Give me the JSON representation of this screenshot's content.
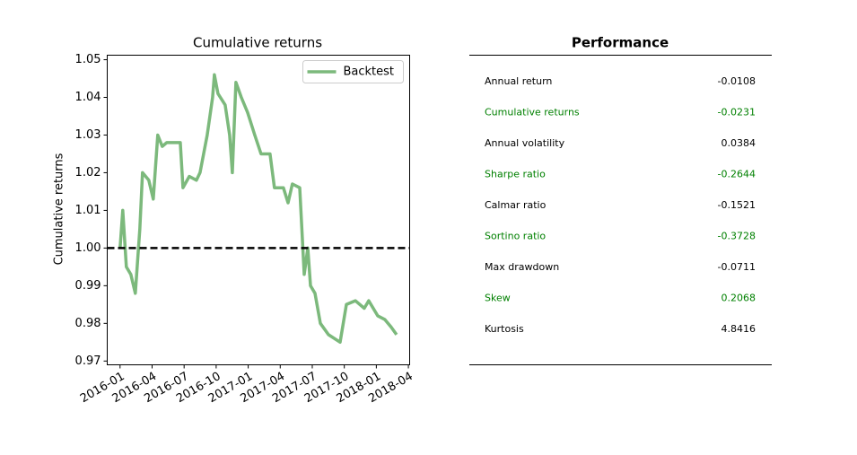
{
  "chart_data": {
    "type": "line",
    "title": "Cumulative returns",
    "ylabel": "Cumulative returns",
    "x": [
      2016.0,
      2016.021,
      2016.049,
      2016.084,
      2016.119,
      2016.154,
      2016.175,
      2016.224,
      2016.259,
      2016.294,
      2016.329,
      2016.364,
      2016.434,
      2016.47,
      2016.491,
      2016.54,
      2016.596,
      2016.624,
      2016.68,
      2016.722,
      2016.736,
      2016.764,
      2016.82,
      2016.855,
      2016.876,
      2016.904,
      2016.946,
      2016.995,
      2017.051,
      2017.1,
      2017.17,
      2017.205,
      2017.275,
      2017.311,
      2017.345,
      2017.402,
      2017.437,
      2017.465,
      2017.486,
      2017.521,
      2017.563,
      2017.626,
      2017.717,
      2017.766,
      2017.836,
      2017.906,
      2017.941,
      2018.011,
      2018.067,
      2018.116,
      2018.158
    ],
    "series": [
      {
        "name": "Backtest",
        "color": "#7cb97c",
        "values": [
          1.0,
          1.01,
          0.995,
          0.993,
          0.988,
          1.005,
          1.02,
          1.018,
          1.013,
          1.03,
          1.027,
          1.028,
          1.028,
          1.028,
          1.016,
          1.019,
          1.018,
          1.02,
          1.03,
          1.04,
          1.046,
          1.041,
          1.038,
          1.03,
          1.02,
          1.044,
          1.04,
          1.036,
          1.03,
          1.025,
          1.025,
          1.016,
          1.016,
          1.012,
          1.017,
          1.016,
          0.993,
          1.0,
          0.99,
          0.988,
          0.98,
          0.977,
          0.975,
          0.985,
          0.986,
          0.984,
          0.986,
          0.982,
          0.981,
          0.979,
          0.977
        ]
      }
    ],
    "hline": 1.0,
    "xlim": [
      2015.9,
      2018.26
    ],
    "xticks": [
      {
        "value": 2016.0,
        "label": "2016-01"
      },
      {
        "value": 2016.25,
        "label": "2016-04"
      },
      {
        "value": 2016.5,
        "label": "2016-07"
      },
      {
        "value": 2016.75,
        "label": "2016-10"
      },
      {
        "value": 2017.0,
        "label": "2017-01"
      },
      {
        "value": 2017.25,
        "label": "2017-04"
      },
      {
        "value": 2017.5,
        "label": "2017-07"
      },
      {
        "value": 2017.75,
        "label": "2017-10"
      },
      {
        "value": 2018.0,
        "label": "2018-01"
      },
      {
        "value": 2018.25,
        "label": "2018-04"
      }
    ],
    "ylim": [
      0.969,
      1.0512
    ],
    "yticks": [
      0.97,
      0.98,
      0.99,
      {
        "value": 1,
        "label": "1.00"
      },
      1.01,
      1.02,
      1.03,
      1.04,
      1.05
    ],
    "legend": "upper right"
  },
  "performance": {
    "title": "Performance",
    "row_colors": [
      "#000000",
      "#008000"
    ],
    "rows": [
      [
        "Annual return",
        -0.0108
      ],
      [
        "Cumulative returns",
        -0.0231
      ],
      [
        "Annual volatility",
        0.0384
      ],
      [
        "Sharpe ratio",
        -0.2644
      ],
      [
        "Calmar ratio",
        -0.1521
      ],
      [
        "Sortino ratio",
        -0.3728
      ],
      [
        "Max drawdown",
        -0.0711
      ],
      [
        "Skew",
        0.2068
      ],
      [
        "Kurtosis",
        4.8416
      ]
    ]
  }
}
